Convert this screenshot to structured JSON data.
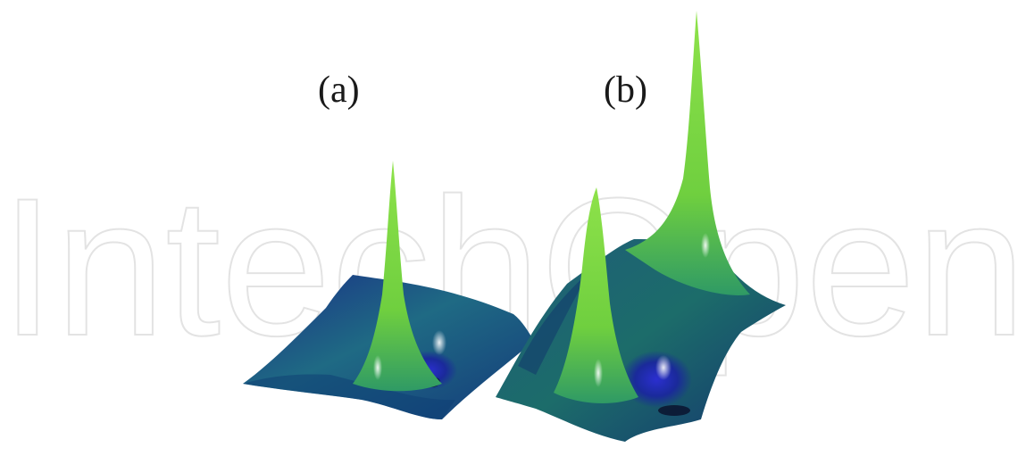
{
  "figure": {
    "panels": [
      {
        "id": "a",
        "label": "(a)"
      },
      {
        "id": "b",
        "label": "(b)"
      }
    ],
    "watermark_text": "IntechOpen",
    "colors": {
      "background": "#ffffff",
      "surface_dark": "#1d2f8a",
      "surface_mid": "#1f6f86",
      "surface_light": "#7fd33a",
      "watermark": "#e6e6e6"
    }
  }
}
